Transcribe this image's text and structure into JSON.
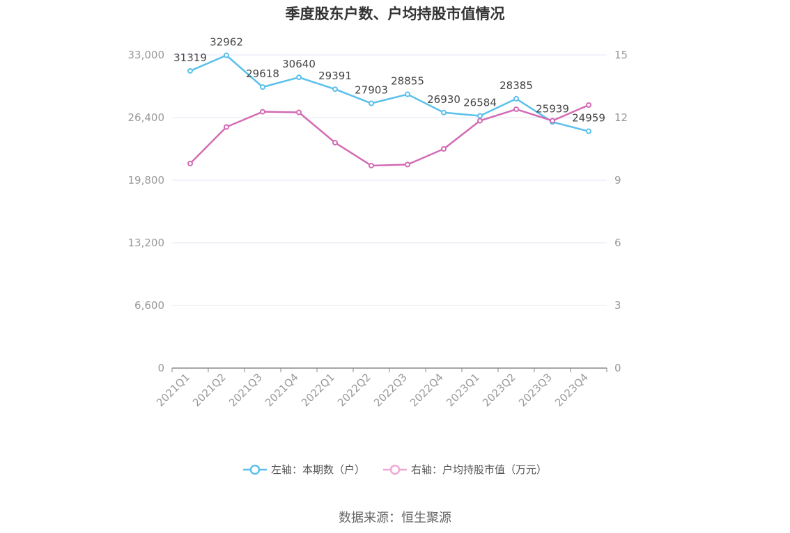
{
  "chart_data": {
    "type": "line",
    "title": "季度股东户数、户均持股市值情况",
    "categories": [
      "2021Q1",
      "2021Q2",
      "2021Q3",
      "2021Q4",
      "2022Q1",
      "2022Q2",
      "2022Q3",
      "2022Q4",
      "2023Q1",
      "2023Q2",
      "2023Q3",
      "2023Q4"
    ],
    "series": [
      {
        "name": "左轴：本期数（户）",
        "axis": "left",
        "color": "#5bc0eb",
        "values": [
          31319,
          32962,
          29618,
          30640,
          29391,
          27903,
          28855,
          26930,
          26584,
          28385,
          25939,
          24959
        ],
        "labels": [
          "31319",
          "32962",
          "29618",
          "30640",
          "29391",
          "27903",
          "28855",
          "26930",
          "26584",
          "28385",
          "25939",
          "24959"
        ]
      },
      {
        "name": "右轴：户均持股市值（万元）",
        "axis": "right",
        "color": "#d36bb4",
        "values": [
          9.8,
          11.55,
          12.28,
          12.25,
          10.8,
          9.7,
          9.75,
          10.5,
          11.85,
          12.4,
          11.85,
          12.6
        ]
      }
    ],
    "left_axis": {
      "min": 0,
      "max": 33000,
      "ticks": [
        0,
        6600,
        13200,
        19800,
        26400,
        33000
      ],
      "tick_labels": [
        "0",
        "6,600",
        "13,200",
        "19,800",
        "26,400",
        "33,000"
      ]
    },
    "right_axis": {
      "min": 0,
      "max": 15,
      "ticks": [
        0,
        3,
        6,
        9,
        12,
        15
      ],
      "tick_labels": [
        "0",
        "3",
        "6",
        "9",
        "12",
        "15"
      ]
    },
    "grid": true,
    "legend_position": "bottom"
  },
  "source": "数据来源：恒生聚源"
}
